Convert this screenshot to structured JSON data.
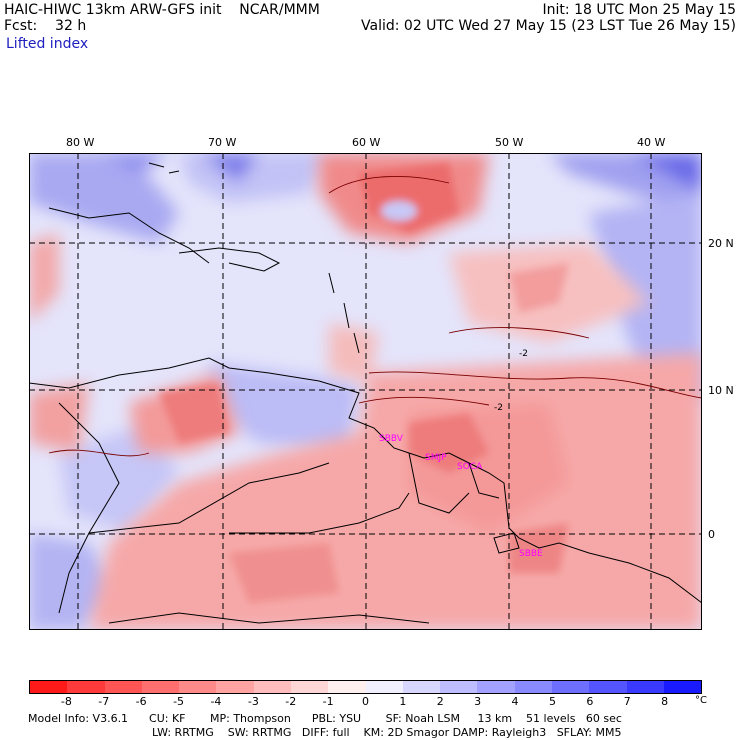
{
  "header": {
    "title": "HAIC-HIWC 13km ARW-GFS init    NCAR/MMM",
    "init": "Init: 18 UTC Mon 25 May 15",
    "fcst": "Fcst:    32 h",
    "valid": "Valid: 02 UTC Wed 27 May 15 (23 LST Tue 26 May 15)",
    "field": "Lifted index"
  },
  "lon_labels": [
    "80 W",
    "70 W",
    "60 W",
    "50 W",
    "40 W"
  ],
  "lat_labels": [
    "20 N",
    "10 N",
    "0"
  ],
  "map_labels": {
    "station_1": "SBBV",
    "station_2": "SMJP",
    "station_3": "SOCA",
    "station_4": "SBBE",
    "contour_1": "-2",
    "contour_2": "-2"
  },
  "colorbar": {
    "unit": "°C",
    "ticks": [
      "-8",
      "-7",
      "-6",
      "-5",
      "-4",
      "-3",
      "-2",
      "-1",
      "0",
      "1",
      "2",
      "3",
      "4",
      "5",
      "6",
      "7",
      "8"
    ],
    "colors": [
      "#ff1a1a",
      "#ff3a3a",
      "#ff5555",
      "#ff6f6f",
      "#ff8a8a",
      "#ffa3a3",
      "#ffbdbd",
      "#ffd6d6",
      "#fff0f0",
      "#f0f0ff",
      "#d6d6ff",
      "#bdbdff",
      "#a3a3ff",
      "#8a8aff",
      "#6f6fff",
      "#5555ff",
      "#3a3aff",
      "#1a1aff"
    ]
  },
  "model_info": {
    "line1": "Model Info: V3.6.1      CU: KF       MP: Thompson      PBL: YSU       SF: Noah LSM     13 km    51 levels   60 sec",
    "line2": "LW: RRTMG    SW: RRTMG   DIFF: full    KM: 2D Smagor DAMP: Rayleigh3   SFLAY: MM5"
  }
}
